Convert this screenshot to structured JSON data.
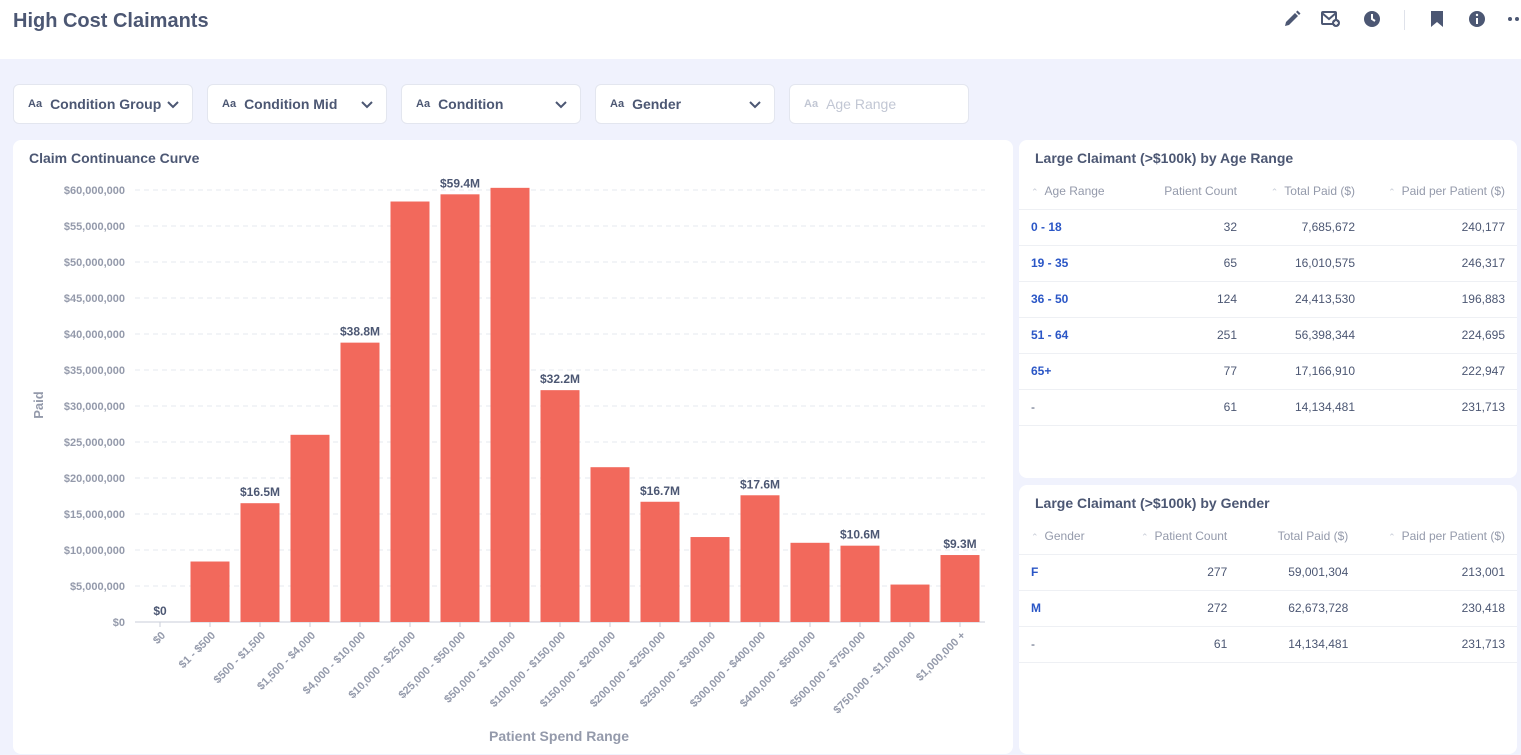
{
  "header": {
    "title": "High Cost Claimants"
  },
  "filters": [
    {
      "label": "Condition Group",
      "icon": "text-type-icon",
      "icon_text": "Aa",
      "disabled": false
    },
    {
      "label": "Condition Mid",
      "icon": "text-type-icon",
      "icon_text": "Aa",
      "disabled": false
    },
    {
      "label": "Condition",
      "icon": "text-type-icon",
      "icon_text": "Aa",
      "disabled": false
    },
    {
      "label": "Gender",
      "icon": "text-type-icon",
      "icon_text": "Aa",
      "disabled": false
    },
    {
      "label": "Age Range",
      "icon": "text-type-icon",
      "icon_text": "Aa",
      "disabled": true
    }
  ],
  "colors": {
    "bar": "#f2695c",
    "accent": "#2a56c6",
    "text": "#4c5773",
    "muted": "#949aab"
  },
  "chart_data": {
    "type": "bar",
    "title": "Claim Continuance Curve",
    "xlabel": "Patient Spend Range",
    "ylabel": "Paid",
    "ylim": [
      0,
      60000000
    ],
    "grid": true,
    "yticks": [
      "$0",
      "$5,000,000",
      "$10,000,000",
      "$15,000,000",
      "$20,000,000",
      "$25,000,000",
      "$30,000,000",
      "$35,000,000",
      "$40,000,000",
      "$45,000,000",
      "$50,000,000",
      "$55,000,000",
      "$60,000,000"
    ],
    "categories": [
      "$0",
      "$1 - $500",
      "$500 - $1,500",
      "$1,500 - $4,000",
      "$4,000 - $10,000",
      "$10,000 - $25,000",
      "$25,000 - $50,000",
      "$50,000 - $100,000",
      "$100,000 - $150,000",
      "$150,000 - $200,000",
      "$200,000 - $250,000",
      "$250,000 - $300,000",
      "$300,000 - $400,000",
      "$400,000 - $500,000",
      "$500,000 - $750,000",
      "$750,000 - $1,000,000",
      "$1,000,000 +"
    ],
    "values": [
      0,
      8400000,
      16500000,
      26000000,
      38800000,
      58400000,
      59400000,
      60300000,
      32200000,
      21500000,
      16700000,
      11800000,
      17600000,
      11000000,
      10600000,
      5200000,
      9300000
    ],
    "data_labels": [
      "$0",
      "",
      "$16.5M",
      "",
      "$38.8M",
      "",
      "$59.4M",
      "",
      "$32.2M",
      "",
      "$16.7M",
      "",
      "$17.6M",
      "",
      "$10.6M",
      "",
      "$9.3M"
    ]
  },
  "age_table": {
    "title": "Large Claimant (>$100k) by Age Range",
    "columns": [
      "Age Range",
      "Patient Count",
      "Total Paid ($)",
      "Paid per Patient ($)"
    ],
    "rows": [
      [
        "0 - 18",
        "32",
        "7,685,672",
        "240,177"
      ],
      [
        "19 - 35",
        "65",
        "16,010,575",
        "246,317"
      ],
      [
        "36 - 50",
        "124",
        "24,413,530",
        "196,883"
      ],
      [
        "51 - 64",
        "251",
        "56,398,344",
        "224,695"
      ],
      [
        "65+",
        "77",
        "17,166,910",
        "222,947"
      ],
      [
        "-",
        "61",
        "14,134,481",
        "231,713"
      ]
    ]
  },
  "gender_table": {
    "title": "Large Claimant (>$100k) by Gender",
    "columns": [
      "Gender",
      "Patient Count",
      "Total Paid ($)",
      "Paid per Patient ($)"
    ],
    "rows": [
      [
        "F",
        "277",
        "59,001,304",
        "213,001"
      ],
      [
        "M",
        "272",
        "62,673,728",
        "230,418"
      ],
      [
        "-",
        "61",
        "14,134,481",
        "231,713"
      ]
    ]
  }
}
